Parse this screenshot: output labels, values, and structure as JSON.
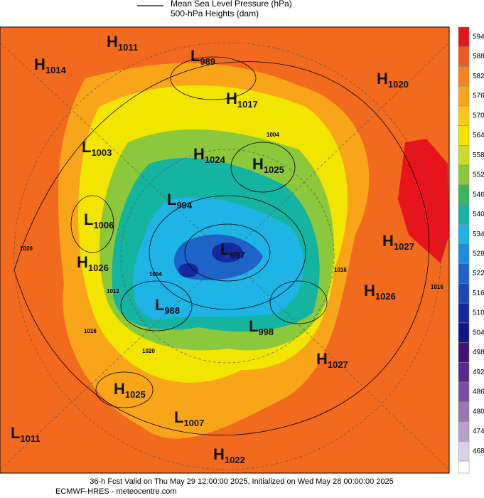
{
  "header": {
    "legend": [
      "Mean Sea Level Pressure (hPa)",
      "500-hPa Heights (dam)"
    ]
  },
  "pressure_centers": [
    {
      "kind": "H",
      "value": 1011
    },
    {
      "kind": "H",
      "value": 1014
    },
    {
      "kind": "L",
      "value": 989
    },
    {
      "kind": "H",
      "value": 1017
    },
    {
      "kind": "H",
      "value": 1020
    },
    {
      "kind": "L",
      "value": 1003
    },
    {
      "kind": "H",
      "value": 1024
    },
    {
      "kind": "H",
      "value": 1025
    },
    {
      "kind": "L",
      "value": 994
    },
    {
      "kind": "L",
      "value": 1006
    },
    {
      "kind": "L",
      "value": 997
    },
    {
      "kind": "H",
      "value": 1027
    },
    {
      "kind": "H",
      "value": 1026
    },
    {
      "kind": "H",
      "value": 1026
    },
    {
      "kind": "L",
      "value": 988
    },
    {
      "kind": "L",
      "value": 998
    },
    {
      "kind": "H",
      "value": 1027
    },
    {
      "kind": "H",
      "value": 1025
    },
    {
      "kind": "L",
      "value": 1007
    },
    {
      "kind": "L",
      "value": 1011
    },
    {
      "kind": "H",
      "value": 1022
    }
  ],
  "contour_labels": [
    1020,
    1016,
    1004,
    1012,
    1016,
    1020,
    1016,
    1004
  ],
  "colorbar": {
    "ticks": [
      594,
      588,
      582,
      576,
      570,
      564,
      558,
      552,
      546,
      540,
      534,
      528,
      522,
      516,
      510,
      504,
      498,
      492,
      486,
      480,
      474,
      468
    ],
    "colors": [
      "#e8141b",
      "#f05a1e",
      "#f5821f",
      "#f9a51a",
      "#fcc814",
      "#f2e600",
      "#c8dc28",
      "#8cc83c",
      "#3cb45a",
      "#14b4a0",
      "#1eb4e6",
      "#1e8cdc",
      "#1e64c8",
      "#1e46b4",
      "#1428a0",
      "#14148c",
      "#3c1478",
      "#5a288c",
      "#7850a0",
      "#9678b4",
      "#b4a0cc",
      "#dcd2e6"
    ]
  },
  "footer": [
    "36-h Fcst Valid on Thu May 29 12:00:00 2025, Initialized on Wed May 28 00:00:00 2025",
    "ECMWF-HRES  - meteocentre.com"
  ]
}
